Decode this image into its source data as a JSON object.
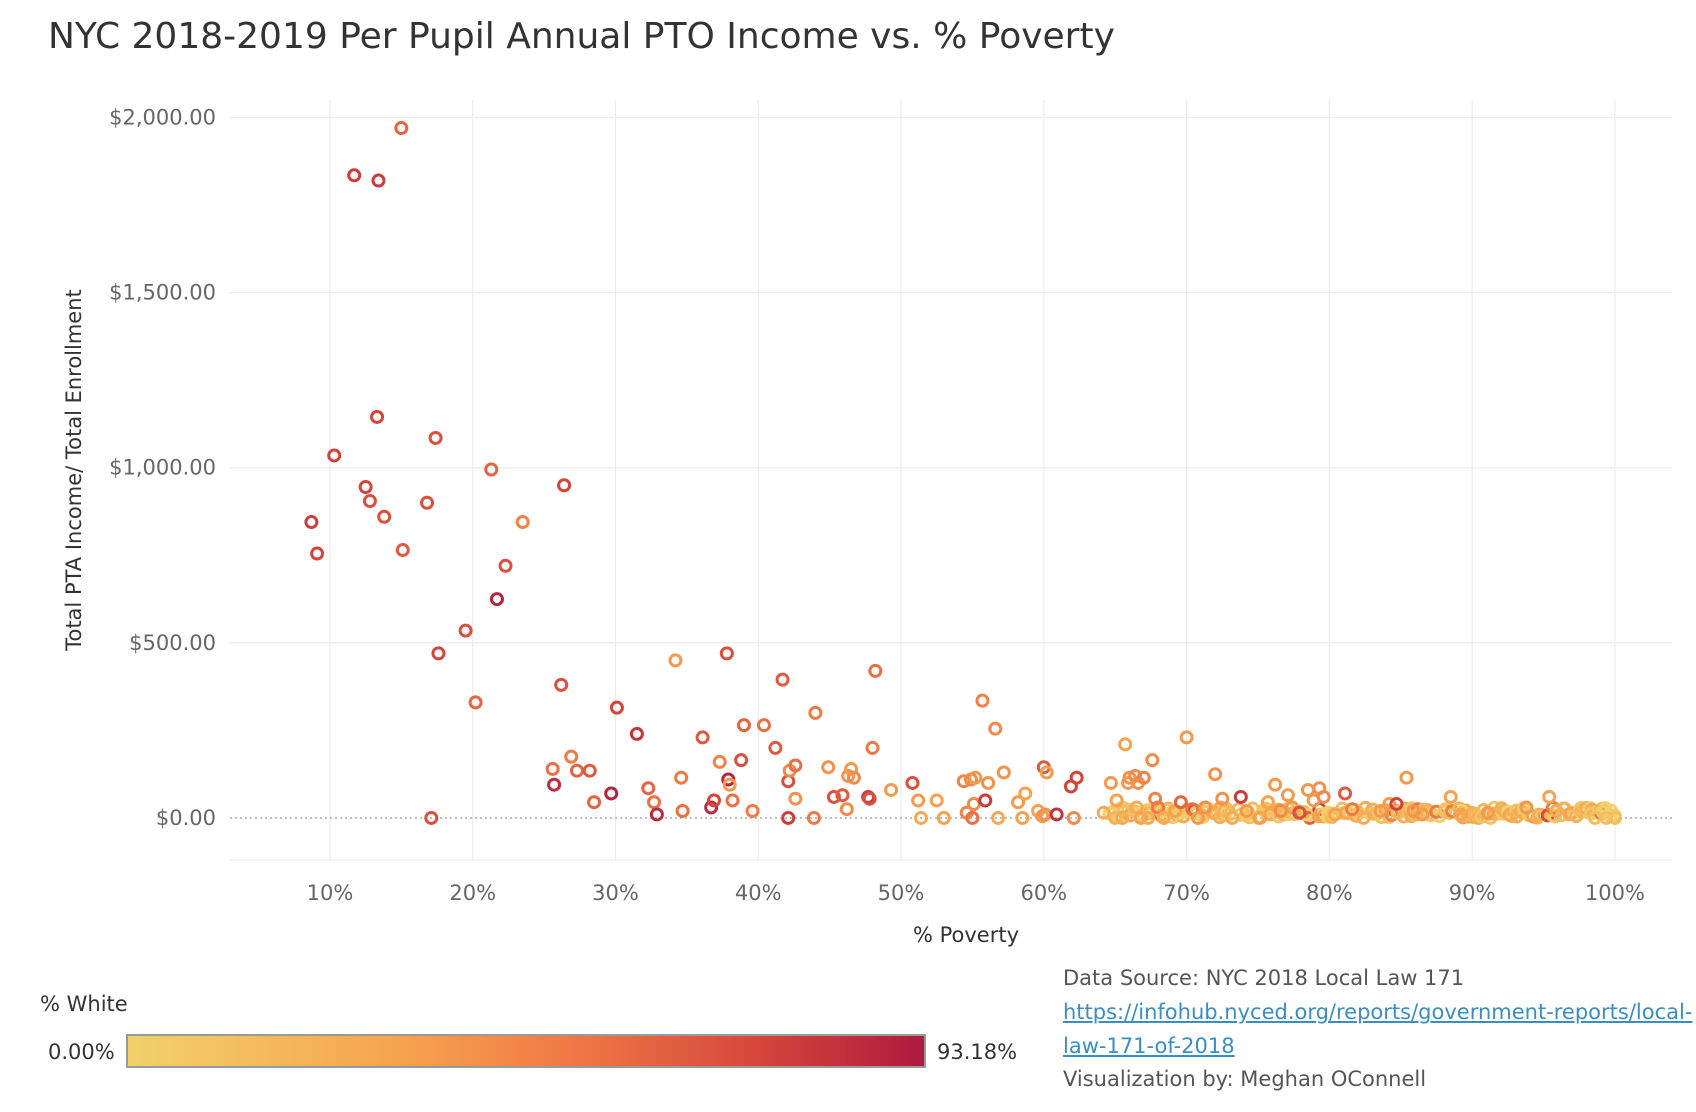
{
  "title": "NYC 2018-2019 Per Pupil Annual PTO Income vs. % Poverty",
  "legend": {
    "title": "% White",
    "min_label": "0.00%",
    "max_label": "93.18%",
    "colors": [
      "#f2d16b",
      "#f6a24f",
      "#f07a46",
      "#d4443b",
      "#ad1b3f"
    ]
  },
  "footer": {
    "source": "Data Source: NYC 2018 Local Law 171",
    "link_line1": "https://infohub.nyced.org/reports/government-reports/local-",
    "link_line2": "law-171-of-2018",
    "credit": "Visualization by: Meghan OConnell"
  },
  "chart_data": {
    "type": "scatter",
    "title": "NYC 2018-2019 Per Pupil Annual PTO Income vs. % Poverty",
    "xlabel": "% Poverty",
    "ylabel": "Total PTA Income/ Total Enrollment",
    "xlim": [
      3,
      104
    ],
    "ylim": [
      -120,
      2050
    ],
    "x_ticks": [
      10,
      20,
      30,
      40,
      50,
      60,
      70,
      80,
      90,
      100
    ],
    "x_tick_labels": [
      "10%",
      "20%",
      "30%",
      "40%",
      "50%",
      "60%",
      "70%",
      "80%",
      "90%",
      "100%"
    ],
    "y_ticks": [
      0,
      500,
      1000,
      1500,
      2000
    ],
    "y_tick_labels": [
      "$0.00",
      "$500.00",
      "$1,000.00",
      "$1,500.00",
      "$2,000.00"
    ],
    "grid": true,
    "marker": "hollow-circle",
    "color_encoding": "% White",
    "points": [
      {
        "x": 8.7,
        "y": 845,
        "w": 0.8
      },
      {
        "x": 9.1,
        "y": 755,
        "w": 0.75
      },
      {
        "x": 10.3,
        "y": 1035,
        "w": 0.75
      },
      {
        "x": 11.7,
        "y": 1835,
        "w": 0.8
      },
      {
        "x": 12.5,
        "y": 945,
        "w": 0.75
      },
      {
        "x": 12.8,
        "y": 905,
        "w": 0.7
      },
      {
        "x": 13.3,
        "y": 1145,
        "w": 0.75
      },
      {
        "x": 13.4,
        "y": 1820,
        "w": 0.8
      },
      {
        "x": 13.8,
        "y": 860,
        "w": 0.7
      },
      {
        "x": 15.0,
        "y": 1970,
        "w": 0.6
      },
      {
        "x": 15.1,
        "y": 765,
        "w": 0.65
      },
      {
        "x": 16.8,
        "y": 900,
        "w": 0.7
      },
      {
        "x": 17.1,
        "y": 0,
        "w": 0.7
      },
      {
        "x": 17.4,
        "y": 1085,
        "w": 0.7
      },
      {
        "x": 17.6,
        "y": 470,
        "w": 0.75
      },
      {
        "x": 19.5,
        "y": 535,
        "w": 0.7
      },
      {
        "x": 20.2,
        "y": 330,
        "w": 0.6
      },
      {
        "x": 21.3,
        "y": 995,
        "w": 0.6
      },
      {
        "x": 21.7,
        "y": 625,
        "w": 0.95
      },
      {
        "x": 22.3,
        "y": 720,
        "w": 0.7
      },
      {
        "x": 23.5,
        "y": 845,
        "w": 0.45
      },
      {
        "x": 25.6,
        "y": 140,
        "w": 0.55
      },
      {
        "x": 25.7,
        "y": 95,
        "w": 0.9
      },
      {
        "x": 26.2,
        "y": 380,
        "w": 0.7
      },
      {
        "x": 26.4,
        "y": 950,
        "w": 0.75
      },
      {
        "x": 26.9,
        "y": 175,
        "w": 0.5
      },
      {
        "x": 27.3,
        "y": 135,
        "w": 0.6
      },
      {
        "x": 28.2,
        "y": 135,
        "w": 0.65
      },
      {
        "x": 28.5,
        "y": 45,
        "w": 0.6
      },
      {
        "x": 29.7,
        "y": 70,
        "w": 0.95
      },
      {
        "x": 30.1,
        "y": 315,
        "w": 0.75
      },
      {
        "x": 31.5,
        "y": 240,
        "w": 0.85
      },
      {
        "x": 32.3,
        "y": 85,
        "w": 0.6
      },
      {
        "x": 32.7,
        "y": 45,
        "w": 0.55
      },
      {
        "x": 32.9,
        "y": 10,
        "w": 0.9
      },
      {
        "x": 34.2,
        "y": 450,
        "w": 0.3
      },
      {
        "x": 34.6,
        "y": 115,
        "w": 0.5
      },
      {
        "x": 34.7,
        "y": 20,
        "w": 0.55
      },
      {
        "x": 36.1,
        "y": 230,
        "w": 0.65
      },
      {
        "x": 36.7,
        "y": 30,
        "w": 0.9
      },
      {
        "x": 36.9,
        "y": 50,
        "w": 0.75
      },
      {
        "x": 37.3,
        "y": 160,
        "w": 0.45
      },
      {
        "x": 37.8,
        "y": 470,
        "w": 0.7
      },
      {
        "x": 37.9,
        "y": 110,
        "w": 0.95
      },
      {
        "x": 38.0,
        "y": 95,
        "w": 0.3
      },
      {
        "x": 38.2,
        "y": 50,
        "w": 0.55
      },
      {
        "x": 38.8,
        "y": 165,
        "w": 0.7
      },
      {
        "x": 39.0,
        "y": 265,
        "w": 0.6
      },
      {
        "x": 39.6,
        "y": 20,
        "w": 0.5
      },
      {
        "x": 40.4,
        "y": 265,
        "w": 0.55
      },
      {
        "x": 41.2,
        "y": 200,
        "w": 0.65
      },
      {
        "x": 41.7,
        "y": 395,
        "w": 0.65
      },
      {
        "x": 42.1,
        "y": 105,
        "w": 0.7
      },
      {
        "x": 42.1,
        "y": 0,
        "w": 0.8
      },
      {
        "x": 42.2,
        "y": 135,
        "w": 0.4
      },
      {
        "x": 42.6,
        "y": 150,
        "w": 0.55
      },
      {
        "x": 42.6,
        "y": 55,
        "w": 0.35
      },
      {
        "x": 43.9,
        "y": 0,
        "w": 0.5
      },
      {
        "x": 44.0,
        "y": 300,
        "w": 0.5
      },
      {
        "x": 44.9,
        "y": 145,
        "w": 0.35
      },
      {
        "x": 45.3,
        "y": 60,
        "w": 0.7
      },
      {
        "x": 45.9,
        "y": 65,
        "w": 0.65
      },
      {
        "x": 46.2,
        "y": 25,
        "w": 0.4
      },
      {
        "x": 46.3,
        "y": 120,
        "w": 0.35
      },
      {
        "x": 46.5,
        "y": 140,
        "w": 0.3
      },
      {
        "x": 46.7,
        "y": 115,
        "w": 0.4
      },
      {
        "x": 47.7,
        "y": 60,
        "w": 0.8
      },
      {
        "x": 47.8,
        "y": 55,
        "w": 0.7
      },
      {
        "x": 48.0,
        "y": 200,
        "w": 0.5
      },
      {
        "x": 48.2,
        "y": 420,
        "w": 0.55
      },
      {
        "x": 49.3,
        "y": 80,
        "w": 0.3
      },
      {
        "x": 50.8,
        "y": 100,
        "w": 0.7
      },
      {
        "x": 51.2,
        "y": 50,
        "w": 0.3
      },
      {
        "x": 51.4,
        "y": 0,
        "w": 0.2
      },
      {
        "x": 52.5,
        "y": 50,
        "w": 0.25
      },
      {
        "x": 53.0,
        "y": 0,
        "w": 0.25
      },
      {
        "x": 54.4,
        "y": 105,
        "w": 0.45
      },
      {
        "x": 54.6,
        "y": 15,
        "w": 0.45
      },
      {
        "x": 54.9,
        "y": 110,
        "w": 0.4
      },
      {
        "x": 55.0,
        "y": 0,
        "w": 0.55
      },
      {
        "x": 55.1,
        "y": 40,
        "w": 0.4
      },
      {
        "x": 55.2,
        "y": 115,
        "w": 0.3
      },
      {
        "x": 55.7,
        "y": 335,
        "w": 0.45
      },
      {
        "x": 55.9,
        "y": 50,
        "w": 0.8
      },
      {
        "x": 56.1,
        "y": 100,
        "w": 0.35
      },
      {
        "x": 56.6,
        "y": 255,
        "w": 0.4
      },
      {
        "x": 56.8,
        "y": 0,
        "w": 0.2
      },
      {
        "x": 57.2,
        "y": 130,
        "w": 0.35
      },
      {
        "x": 58.2,
        "y": 45,
        "w": 0.3
      },
      {
        "x": 58.5,
        "y": 0,
        "w": 0.25
      },
      {
        "x": 58.7,
        "y": 70,
        "w": 0.25
      },
      {
        "x": 59.6,
        "y": 20,
        "w": 0.25
      },
      {
        "x": 59.9,
        "y": 5,
        "w": 0.3
      },
      {
        "x": 60.0,
        "y": 145,
        "w": 0.65
      },
      {
        "x": 60.1,
        "y": 10,
        "w": 0.35
      },
      {
        "x": 60.2,
        "y": 130,
        "w": 0.3
      },
      {
        "x": 60.9,
        "y": 10,
        "w": 0.85
      },
      {
        "x": 61.9,
        "y": 90,
        "w": 0.75
      },
      {
        "x": 62.1,
        "y": 0,
        "w": 0.4
      },
      {
        "x": 62.3,
        "y": 115,
        "w": 0.75
      },
      {
        "x": 64.2,
        "y": 15,
        "w": 0.2
      },
      {
        "x": 64.7,
        "y": 100,
        "w": 0.3
      },
      {
        "x": 65.0,
        "y": 0,
        "w": 0.15
      },
      {
        "x": 65.1,
        "y": 50,
        "w": 0.25
      },
      {
        "x": 65.5,
        "y": 0,
        "w": 0.2
      },
      {
        "x": 65.7,
        "y": 210,
        "w": 0.25
      },
      {
        "x": 65.9,
        "y": 100,
        "w": 0.3
      },
      {
        "x": 66.0,
        "y": 115,
        "w": 0.35
      },
      {
        "x": 66.4,
        "y": 120,
        "w": 0.4
      },
      {
        "x": 66.5,
        "y": 30,
        "w": 0.2
      },
      {
        "x": 66.6,
        "y": 100,
        "w": 0.35
      },
      {
        "x": 66.8,
        "y": 0,
        "w": 0.25
      },
      {
        "x": 67.0,
        "y": 115,
        "w": 0.45
      },
      {
        "x": 67.3,
        "y": 0,
        "w": 0.2
      },
      {
        "x": 67.6,
        "y": 165,
        "w": 0.4
      },
      {
        "x": 67.8,
        "y": 55,
        "w": 0.45
      },
      {
        "x": 68.0,
        "y": 30,
        "w": 0.5
      },
      {
        "x": 68.4,
        "y": 0,
        "w": 0.2
      },
      {
        "x": 69.2,
        "y": 20,
        "w": 0.25
      },
      {
        "x": 69.6,
        "y": 45,
        "w": 0.6
      },
      {
        "x": 70.0,
        "y": 230,
        "w": 0.3
      },
      {
        "x": 70.4,
        "y": 25,
        "w": 0.55
      },
      {
        "x": 70.8,
        "y": 0,
        "w": 0.3
      },
      {
        "x": 71.3,
        "y": 30,
        "w": 0.35
      },
      {
        "x": 72.0,
        "y": 125,
        "w": 0.35
      },
      {
        "x": 72.5,
        "y": 55,
        "w": 0.35
      },
      {
        "x": 73.2,
        "y": 0,
        "w": 0.2
      },
      {
        "x": 73.8,
        "y": 60,
        "w": 0.8
      },
      {
        "x": 74.2,
        "y": 20,
        "w": 0.3
      },
      {
        "x": 75.1,
        "y": 0,
        "w": 0.25
      },
      {
        "x": 75.7,
        "y": 45,
        "w": 0.25
      },
      {
        "x": 76.2,
        "y": 95,
        "w": 0.3
      },
      {
        "x": 76.6,
        "y": 20,
        "w": 0.4
      },
      {
        "x": 77.1,
        "y": 65,
        "w": 0.3
      },
      {
        "x": 77.4,
        "y": 30,
        "w": 0.3
      },
      {
        "x": 77.9,
        "y": 15,
        "w": 0.7
      },
      {
        "x": 78.5,
        "y": 80,
        "w": 0.3
      },
      {
        "x": 78.9,
        "y": 50,
        "w": 0.3
      },
      {
        "x": 79.3,
        "y": 85,
        "w": 0.35
      },
      {
        "x": 79.6,
        "y": 60,
        "w": 0.4
      },
      {
        "x": 80.4,
        "y": 10,
        "w": 0.25
      },
      {
        "x": 81.1,
        "y": 70,
        "w": 0.65
      },
      {
        "x": 81.6,
        "y": 25,
        "w": 0.5
      },
      {
        "x": 82.4,
        "y": 0,
        "w": 0.2
      },
      {
        "x": 83.6,
        "y": 20,
        "w": 0.3
      },
      {
        "x": 84.2,
        "y": 40,
        "w": 0.3
      },
      {
        "x": 84.7,
        "y": 40,
        "w": 0.75
      },
      {
        "x": 85.4,
        "y": 115,
        "w": 0.3
      },
      {
        "x": 85.9,
        "y": 20,
        "w": 0.35
      },
      {
        "x": 86.5,
        "y": 10,
        "w": 0.3
      },
      {
        "x": 88.5,
        "y": 60,
        "w": 0.25
      },
      {
        "x": 89.2,
        "y": 10,
        "w": 0.25
      },
      {
        "x": 91.1,
        "y": 15,
        "w": 0.3
      },
      {
        "x": 93.8,
        "y": 30,
        "w": 0.3
      },
      {
        "x": 95.4,
        "y": 60,
        "w": 0.25
      },
      {
        "x": 95.9,
        "y": 20,
        "w": 0.2
      },
      {
        "x": 97.3,
        "y": 5,
        "w": 0.15
      },
      {
        "x": 98.6,
        "y": 0,
        "w": 0.1
      },
      {
        "x": 99.4,
        "y": 0,
        "w": 0.1
      },
      {
        "x": 100.0,
        "y": 0,
        "w": 0.1
      }
    ],
    "dense_band": {
      "x_start": 64.5,
      "x_end": 100,
      "y_min": 0,
      "y_max": 30,
      "description": "hundreds of schools clustered near $0"
    }
  }
}
